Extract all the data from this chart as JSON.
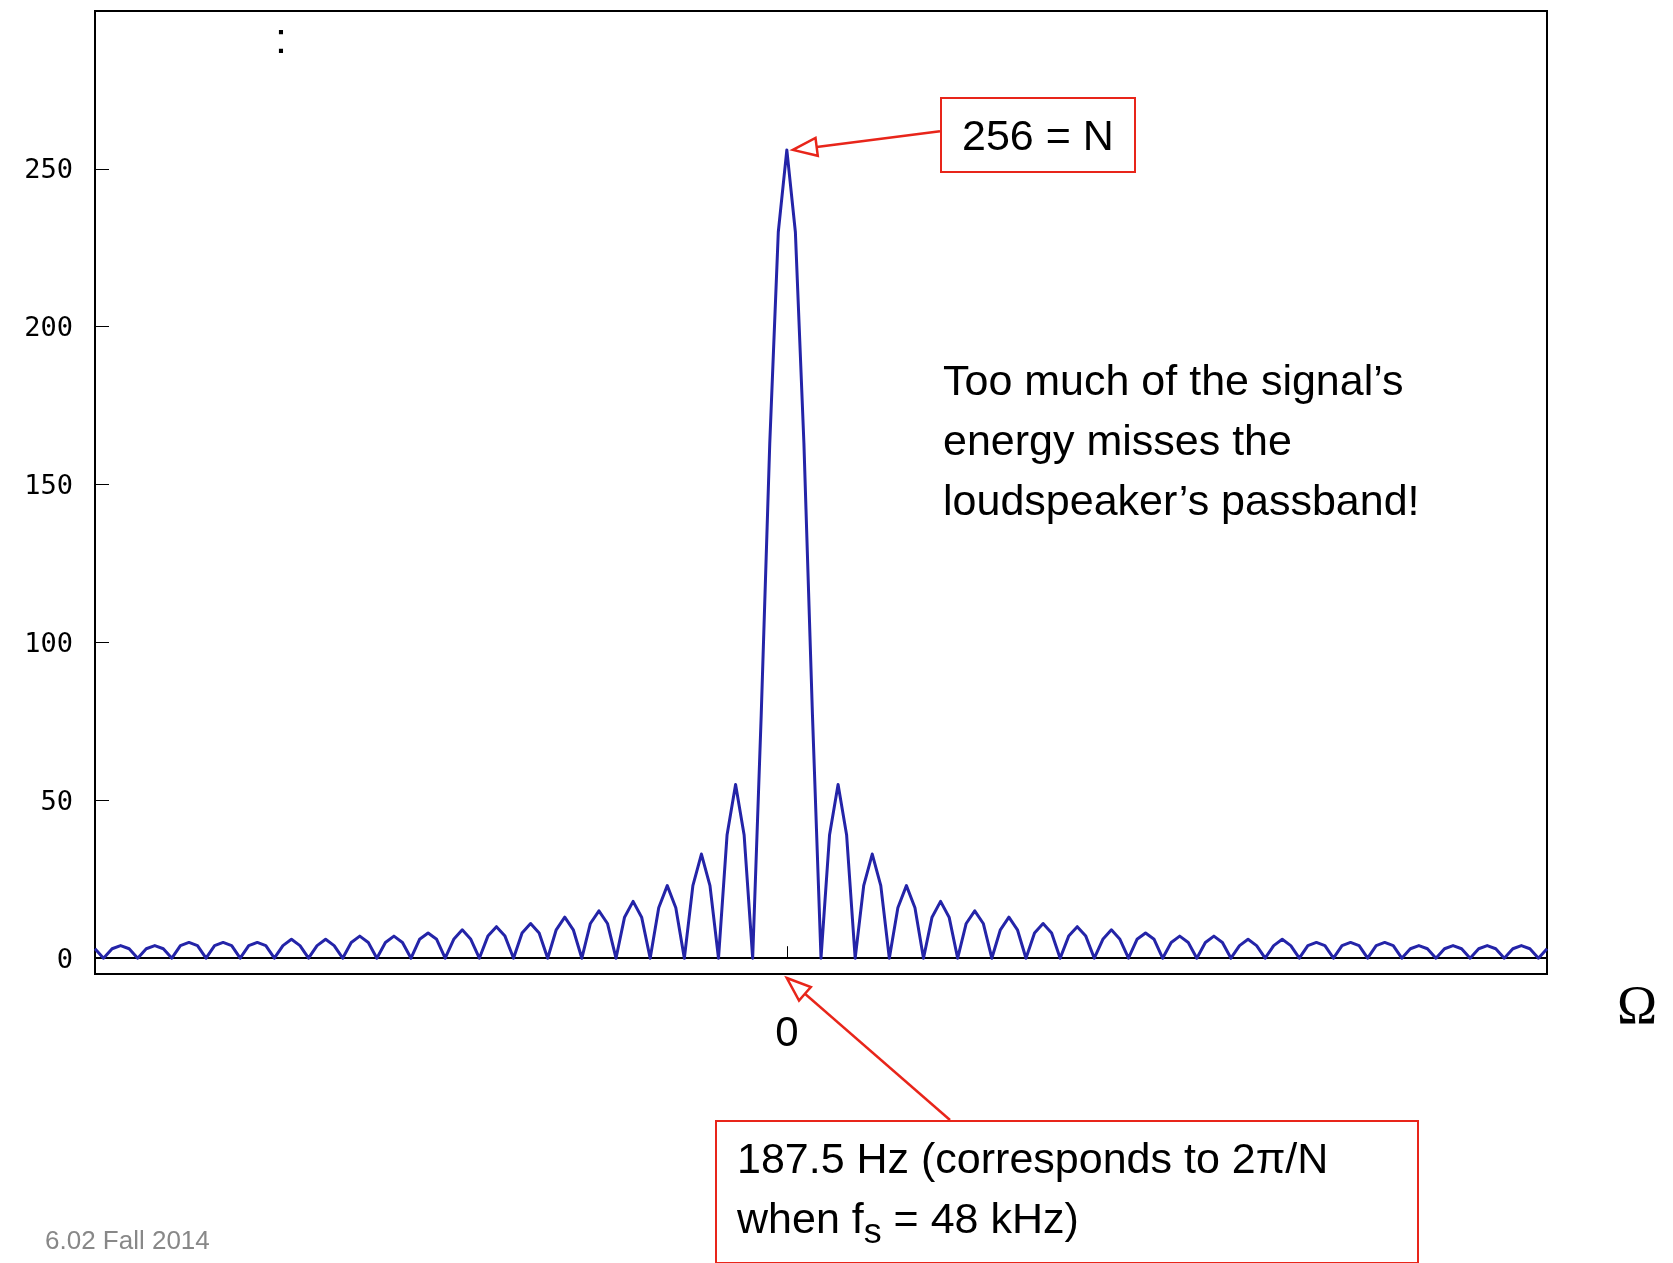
{
  "chart_data": {
    "type": "line",
    "xlabel": "Ω",
    "categories": [
      null,
      null,
      null,
      null,
      null,
      null,
      null,
      null,
      null,
      null,
      null,
      null,
      null,
      null,
      null,
      null,
      null,
      null,
      null,
      null,
      null,
      null,
      null,
      null,
      null,
      null,
      null,
      null,
      null,
      null,
      null,
      null,
      null,
      null,
      null,
      null,
      null,
      null,
      null,
      null,
      null,
      null,
      null,
      null,
      null,
      null,
      null,
      null,
      null,
      null,
      null,
      null,
      null,
      null,
      null,
      null,
      null,
      null,
      null,
      null,
      null,
      null,
      null,
      null,
      null,
      null,
      null,
      null,
      null,
      null,
      null,
      null,
      null,
      null,
      null,
      null,
      null,
      null,
      null,
      null,
      null,
      "0",
      null,
      null,
      null,
      null,
      null,
      null,
      null,
      null,
      null,
      null,
      null,
      null,
      null,
      null,
      null,
      null,
      null,
      null,
      null,
      null,
      null,
      null,
      null,
      null,
      null,
      null,
      null,
      null,
      null,
      null,
      null,
      null,
      null,
      null,
      null,
      null,
      null,
      null,
      null,
      null,
      null,
      null,
      null,
      null,
      null,
      null,
      null,
      null,
      null,
      null,
      null,
      null,
      null,
      null,
      null,
      null,
      null,
      null,
      null,
      null,
      null,
      null,
      null,
      null,
      null,
      null,
      null,
      null,
      null,
      null,
      null,
      null,
      null,
      null,
      null,
      null,
      null,
      null,
      null,
      null,
      null,
      null,
      null,
      null,
      null,
      null,
      null,
      null,
      null
    ],
    "series": [
      {
        "color": "#2424a8",
        "values": [
          3,
          0,
          3,
          4,
          3,
          0,
          3,
          4,
          3,
          0,
          4,
          5,
          4,
          0,
          4,
          5,
          4,
          0,
          4,
          5,
          4,
          0,
          4,
          6,
          4,
          0,
          4,
          6,
          4,
          0,
          5,
          7,
          5,
          0,
          5,
          7,
          5,
          0,
          6,
          8,
          6,
          0,
          6,
          9,
          6,
          0,
          7,
          10,
          7,
          0,
          8,
          11,
          8,
          0,
          9,
          13,
          9,
          0,
          11,
          15,
          11,
          0,
          13,
          18,
          13,
          0,
          16,
          23,
          16,
          0,
          23,
          33,
          23,
          0,
          39,
          55,
          39,
          0,
          77,
          163,
          230,
          256,
          230,
          163,
          77,
          0,
          39,
          55,
          39,
          0,
          23,
          33,
          23,
          0,
          16,
          23,
          16,
          0,
          13,
          18,
          13,
          0,
          11,
          15,
          11,
          0,
          9,
          13,
          9,
          0,
          8,
          11,
          8,
          0,
          7,
          10,
          7,
          0,
          6,
          9,
          6,
          0,
          6,
          8,
          6,
          0,
          5,
          7,
          5,
          0,
          5,
          7,
          5,
          0,
          4,
          6,
          4,
          0,
          4,
          6,
          4,
          0,
          4,
          5,
          4,
          0,
          4,
          5,
          4,
          0,
          4,
          5,
          4,
          0,
          3,
          4,
          3,
          0,
          3,
          4,
          3,
          0,
          3,
          4,
          3,
          0,
          3,
          4,
          3,
          0,
          3
        ]
      }
    ],
    "ylim": [
      -5,
      300
    ],
    "yticks": [
      0,
      50,
      100,
      150,
      200,
      250
    ],
    "annotations": [
      ":",
      "256 = N",
      "Too much of the signal’s energy misses the loudspeaker’s passband!",
      "187.5 Hz (corresponds to 2π/N when f$_{s}$ = 48 kHz)",
      "6.02 Fall 2014"
    ]
  }
}
